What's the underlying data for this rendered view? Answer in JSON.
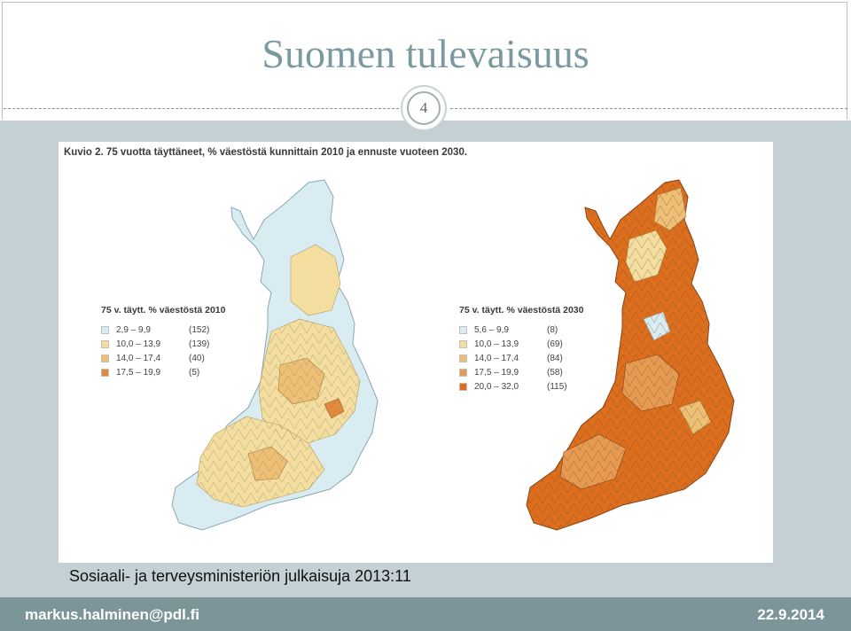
{
  "slide": {
    "title": "Suomen tulevaisuus",
    "number": "4",
    "source": "Sosiaali- ja terveysministeriön julkaisuja 2013:11",
    "footer_email": "markus.halminen@pdl.fi",
    "footer_date": "22.9.2014"
  },
  "figure": {
    "caption": "Kuvio 2. 75 vuotta täyttäneet, % väestöstä kunnittain 2010 ja ennuste vuoteen 2030.",
    "map_2010": {
      "legend_title": "75 v. täytt. % väestöstä 2010",
      "classes": [
        {
          "range": "2,9 –   9,9",
          "count": "(152)",
          "color": "#d9ecf2"
        },
        {
          "range": "10,0 – 13,9",
          "count": "(139)",
          "color": "#f3dea0"
        },
        {
          "range": "14,0 – 17,4",
          "count": "(40)",
          "color": "#eec076"
        },
        {
          "range": "17,5 – 19,9",
          "count": "(5)",
          "color": "#e38a3c"
        }
      ]
    },
    "map_2030": {
      "legend_title": "75 v. täytt. % väestöstä 2030",
      "classes": [
        {
          "range": "5,6 –   9,9",
          "count": "(8)",
          "color": "#d9ecf2"
        },
        {
          "range": "10,0 – 13,9",
          "count": "(69)",
          "color": "#f3dea0"
        },
        {
          "range": "14,0 – 17,4",
          "count": "(84)",
          "color": "#eec076"
        },
        {
          "range": "17,5 – 19,9",
          "count": "(58)",
          "color": "#e79a52"
        },
        {
          "range": "20,0 – 32,0",
          "count": "(115)",
          "color": "#dc6e1e"
        }
      ]
    }
  }
}
